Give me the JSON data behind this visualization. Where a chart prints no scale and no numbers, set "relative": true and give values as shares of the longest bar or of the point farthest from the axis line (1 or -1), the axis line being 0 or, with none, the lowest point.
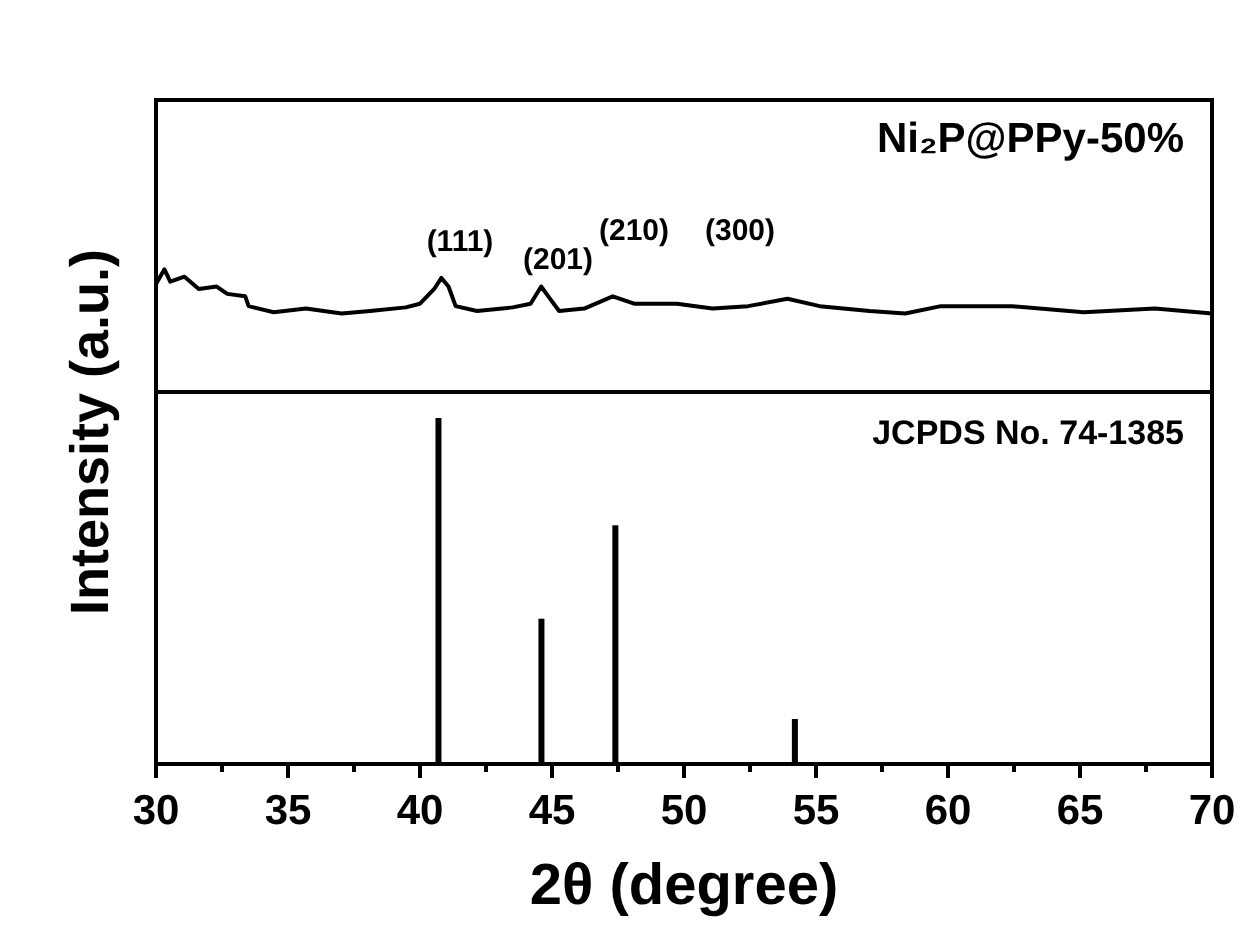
{
  "chart_data": [
    {
      "type": "line",
      "relative": true,
      "ylabel": "Intensity (a.u.)",
      "xlim": [
        30,
        70
      ],
      "tick_labels": false,
      "legend": "top right",
      "x": [
        30.0,
        30.32,
        30.54,
        31.08,
        31.62,
        32.3,
        32.7,
        33.38,
        33.51,
        34.46,
        35.68,
        37.03,
        38.11,
        39.46,
        40.0,
        40.54,
        40.81,
        41.08,
        41.35,
        42.16,
        43.51,
        44.19,
        44.59,
        44.86,
        45.27,
        46.22,
        47.3,
        48.11,
        49.73,
        51.08,
        52.43,
        53.92,
        55.14,
        57.03,
        58.38,
        59.73,
        62.43,
        65.14,
        67.84,
        70.0
      ],
      "series": [
        {
          "name": "Ni₂P@PPy-50%",
          "color": "#000000",
          "values": [
            0.88,
            1.0,
            0.9,
            0.94,
            0.84,
            0.86,
            0.8,
            0.78,
            0.7,
            0.65,
            0.68,
            0.64,
            0.66,
            0.69,
            0.72,
            0.84,
            0.93,
            0.86,
            0.7,
            0.66,
            0.69,
            0.72,
            0.86,
            0.78,
            0.66,
            0.68,
            0.78,
            0.72,
            0.72,
            0.68,
            0.7,
            0.76,
            0.7,
            0.66,
            0.64,
            0.7,
            0.7,
            0.65,
            0.68,
            0.64
          ]
        }
      ],
      "annotations": [
        "(111)",
        "(201)",
        "(210)",
        "(300)"
      ]
    },
    {
      "type": "bar",
      "relative": true,
      "xlabel": "2θ (degree)",
      "xlim": [
        30,
        70
      ],
      "tick_labels": "x",
      "legend": "top right",
      "xticks": [
        30,
        {
          "value": 32.5,
          "label": null
        },
        35,
        {
          "value": 37.5,
          "label": null
        },
        40,
        {
          "value": 42.5,
          "label": null
        },
        45,
        {
          "value": 47.5,
          "label": null
        },
        50,
        {
          "value": 52.5,
          "label": null
        },
        55,
        {
          "value": 57.5,
          "label": null
        },
        60,
        {
          "value": 62.5,
          "label": null
        },
        65,
        {
          "value": 67.5,
          "label": null
        },
        70
      ],
      "x": [
        40.7,
        44.6,
        47.4,
        54.2
      ],
      "series": [
        {
          "name": "JCPDS No. 74-1385",
          "color": "#000000",
          "values": [
            1,
            0.42,
            0.69,
            0.13
          ]
        }
      ]
    }
  ]
}
